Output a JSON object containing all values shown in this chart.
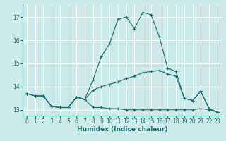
{
  "xlabel": "Humidex (Indice chaleur)",
  "bg_color": "#cceaea",
  "grid_color": "#ffffff",
  "line_color": "#1a6b6b",
  "xlim": [
    -0.5,
    23.5
  ],
  "ylim": [
    12.75,
    17.55
  ],
  "yticks": [
    13,
    14,
    15,
    16,
    17
  ],
  "xticks": [
    0,
    1,
    2,
    3,
    4,
    5,
    6,
    7,
    8,
    9,
    10,
    11,
    12,
    13,
    14,
    15,
    16,
    17,
    18,
    19,
    20,
    21,
    22,
    23
  ],
  "series": [
    {
      "x": [
        0,
        1,
        2,
        3,
        4,
        5,
        6,
        7,
        8,
        9,
        10,
        11,
        12,
        13,
        14,
        15,
        16,
        17,
        18,
        19,
        20,
        21,
        22,
        23
      ],
      "y": [
        13.7,
        13.6,
        13.6,
        13.15,
        13.1,
        13.1,
        13.55,
        13.45,
        13.1,
        13.1,
        13.05,
        13.05,
        13.0,
        13.0,
        13.0,
        13.0,
        13.0,
        13.0,
        13.0,
        13.0,
        13.0,
        13.05,
        13.0,
        12.9
      ]
    },
    {
      "x": [
        0,
        1,
        2,
        3,
        4,
        5,
        6,
        7,
        8,
        9,
        10,
        11,
        12,
        13,
        14,
        15,
        16,
        17,
        18,
        19,
        20,
        21,
        22,
        23
      ],
      "y": [
        13.7,
        13.6,
        13.6,
        13.15,
        13.1,
        13.1,
        13.55,
        13.45,
        13.85,
        14.0,
        14.1,
        14.2,
        14.35,
        14.45,
        14.6,
        14.65,
        14.7,
        14.55,
        14.45,
        13.5,
        13.4,
        13.8,
        13.05,
        12.9
      ]
    },
    {
      "x": [
        0,
        1,
        2,
        3,
        4,
        5,
        6,
        7,
        8,
        9,
        10,
        11,
        12,
        13,
        14,
        15,
        16,
        17,
        18,
        19,
        20,
        21,
        22,
        23
      ],
      "y": [
        13.7,
        13.6,
        13.6,
        13.15,
        13.1,
        13.1,
        13.55,
        13.45,
        14.3,
        15.3,
        15.85,
        16.9,
        17.0,
        16.5,
        17.2,
        17.1,
        16.15,
        14.8,
        14.65,
        13.5,
        13.4,
        13.8,
        13.05,
        12.9
      ]
    }
  ]
}
